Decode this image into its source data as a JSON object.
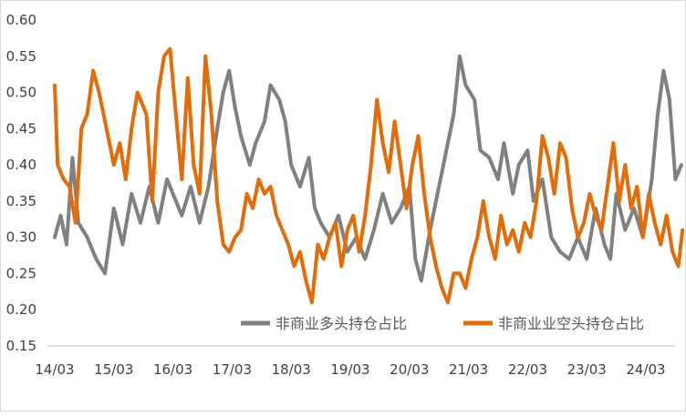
{
  "chart_data": {
    "type": "line",
    "title": "",
    "xlabel": "",
    "ylabel": "",
    "ylim": [
      0.15,
      0.6
    ],
    "y_ticks": [
      "0.15",
      "0.20",
      "0.25",
      "0.30",
      "0.35",
      "0.40",
      "0.45",
      "0.50",
      "0.55",
      "0.60"
    ],
    "x_ticks": [
      "14/03",
      "15/03",
      "16/03",
      "17/03",
      "18/03",
      "19/03",
      "20/03",
      "21/03",
      "22/03",
      "23/03",
      "24/03"
    ],
    "x_range": [
      2014.0,
      2024.65
    ],
    "grid": false,
    "legend": "bottom-right",
    "series": [
      {
        "name": "非商业多头持仓占比",
        "color": "#808080",
        "points": [
          [
            2014.0,
            0.3
          ],
          [
            2014.1,
            0.33
          ],
          [
            2014.2,
            0.29
          ],
          [
            2014.3,
            0.41
          ],
          [
            2014.4,
            0.32
          ],
          [
            2014.55,
            0.3
          ],
          [
            2014.7,
            0.27
          ],
          [
            2014.85,
            0.25
          ],
          [
            2015.0,
            0.34
          ],
          [
            2015.15,
            0.29
          ],
          [
            2015.3,
            0.36
          ],
          [
            2015.45,
            0.32
          ],
          [
            2015.6,
            0.37
          ],
          [
            2015.75,
            0.32
          ],
          [
            2015.9,
            0.38
          ],
          [
            2016.0,
            0.36
          ],
          [
            2016.15,
            0.33
          ],
          [
            2016.3,
            0.37
          ],
          [
            2016.45,
            0.32
          ],
          [
            2016.6,
            0.37
          ],
          [
            2016.75,
            0.45
          ],
          [
            2016.85,
            0.5
          ],
          [
            2016.95,
            0.53
          ],
          [
            2017.05,
            0.48
          ],
          [
            2017.15,
            0.44
          ],
          [
            2017.3,
            0.4
          ],
          [
            2017.4,
            0.43
          ],
          [
            2017.55,
            0.46
          ],
          [
            2017.65,
            0.51
          ],
          [
            2017.8,
            0.49
          ],
          [
            2017.9,
            0.46
          ],
          [
            2018.0,
            0.4
          ],
          [
            2018.15,
            0.37
          ],
          [
            2018.3,
            0.41
          ],
          [
            2018.4,
            0.34
          ],
          [
            2018.5,
            0.32
          ],
          [
            2018.65,
            0.3
          ],
          [
            2018.8,
            0.33
          ],
          [
            2018.95,
            0.28
          ],
          [
            2019.1,
            0.3
          ],
          [
            2019.25,
            0.27
          ],
          [
            2019.4,
            0.31
          ],
          [
            2019.55,
            0.36
          ],
          [
            2019.7,
            0.32
          ],
          [
            2019.85,
            0.34
          ],
          [
            2020.0,
            0.37
          ],
          [
            2020.1,
            0.27
          ],
          [
            2020.2,
            0.24
          ],
          [
            2020.35,
            0.31
          ],
          [
            2020.5,
            0.37
          ],
          [
            2020.6,
            0.41
          ],
          [
            2020.75,
            0.47
          ],
          [
            2020.85,
            0.55
          ],
          [
            2020.95,
            0.51
          ],
          [
            2021.1,
            0.49
          ],
          [
            2021.2,
            0.42
          ],
          [
            2021.35,
            0.41
          ],
          [
            2021.5,
            0.38
          ],
          [
            2021.6,
            0.43
          ],
          [
            2021.75,
            0.36
          ],
          [
            2021.85,
            0.4
          ],
          [
            2022.0,
            0.42
          ],
          [
            2022.1,
            0.35
          ],
          [
            2022.25,
            0.38
          ],
          [
            2022.4,
            0.3
          ],
          [
            2022.55,
            0.28
          ],
          [
            2022.7,
            0.27
          ],
          [
            2022.85,
            0.3
          ],
          [
            2023.0,
            0.27
          ],
          [
            2023.15,
            0.34
          ],
          [
            2023.3,
            0.29
          ],
          [
            2023.4,
            0.27
          ],
          [
            2023.5,
            0.36
          ],
          [
            2023.65,
            0.31
          ],
          [
            2023.8,
            0.34
          ],
          [
            2023.95,
            0.3
          ],
          [
            2024.1,
            0.38
          ],
          [
            2024.2,
            0.47
          ],
          [
            2024.3,
            0.53
          ],
          [
            2024.4,
            0.49
          ],
          [
            2024.5,
            0.38
          ],
          [
            2024.6,
            0.4
          ]
        ]
      },
      {
        "name": "非商业业空头持仓占比",
        "color": "#e36c09",
        "points": [
          [
            2014.0,
            0.51
          ],
          [
            2014.05,
            0.4
          ],
          [
            2014.15,
            0.38
          ],
          [
            2014.25,
            0.37
          ],
          [
            2014.35,
            0.32
          ],
          [
            2014.45,
            0.45
          ],
          [
            2014.55,
            0.47
          ],
          [
            2014.65,
            0.53
          ],
          [
            2014.75,
            0.5
          ],
          [
            2014.85,
            0.46
          ],
          [
            2015.0,
            0.4
          ],
          [
            2015.1,
            0.43
          ],
          [
            2015.2,
            0.38
          ],
          [
            2015.3,
            0.45
          ],
          [
            2015.4,
            0.5
          ],
          [
            2015.55,
            0.47
          ],
          [
            2015.65,
            0.35
          ],
          [
            2015.75,
            0.5
          ],
          [
            2015.85,
            0.55
          ],
          [
            2015.95,
            0.56
          ],
          [
            2016.05,
            0.47
          ],
          [
            2016.15,
            0.38
          ],
          [
            2016.25,
            0.52
          ],
          [
            2016.35,
            0.4
          ],
          [
            2016.45,
            0.36
          ],
          [
            2016.55,
            0.55
          ],
          [
            2016.65,
            0.47
          ],
          [
            2016.75,
            0.35
          ],
          [
            2016.85,
            0.29
          ],
          [
            2016.95,
            0.28
          ],
          [
            2017.05,
            0.3
          ],
          [
            2017.15,
            0.31
          ],
          [
            2017.25,
            0.36
          ],
          [
            2017.35,
            0.34
          ],
          [
            2017.45,
            0.38
          ],
          [
            2017.55,
            0.36
          ],
          [
            2017.65,
            0.37
          ],
          [
            2017.75,
            0.33
          ],
          [
            2017.85,
            0.31
          ],
          [
            2017.95,
            0.29
          ],
          [
            2018.05,
            0.26
          ],
          [
            2018.15,
            0.28
          ],
          [
            2018.25,
            0.24
          ],
          [
            2018.35,
            0.21
          ],
          [
            2018.45,
            0.29
          ],
          [
            2018.55,
            0.27
          ],
          [
            2018.65,
            0.3
          ],
          [
            2018.75,
            0.32
          ],
          [
            2018.85,
            0.26
          ],
          [
            2018.95,
            0.31
          ],
          [
            2019.05,
            0.33
          ],
          [
            2019.15,
            0.28
          ],
          [
            2019.25,
            0.33
          ],
          [
            2019.35,
            0.4
          ],
          [
            2019.45,
            0.49
          ],
          [
            2019.55,
            0.43
          ],
          [
            2019.65,
            0.39
          ],
          [
            2019.75,
            0.46
          ],
          [
            2019.85,
            0.4
          ],
          [
            2019.95,
            0.34
          ],
          [
            2020.05,
            0.4
          ],
          [
            2020.15,
            0.44
          ],
          [
            2020.25,
            0.36
          ],
          [
            2020.35,
            0.3
          ],
          [
            2020.45,
            0.26
          ],
          [
            2020.55,
            0.23
          ],
          [
            2020.65,
            0.21
          ],
          [
            2020.75,
            0.25
          ],
          [
            2020.85,
            0.25
          ],
          [
            2020.95,
            0.23
          ],
          [
            2021.05,
            0.27
          ],
          [
            2021.15,
            0.3
          ],
          [
            2021.25,
            0.35
          ],
          [
            2021.35,
            0.3
          ],
          [
            2021.45,
            0.27
          ],
          [
            2021.55,
            0.33
          ],
          [
            2021.65,
            0.29
          ],
          [
            2021.75,
            0.31
          ],
          [
            2021.85,
            0.28
          ],
          [
            2021.95,
            0.32
          ],
          [
            2022.05,
            0.3
          ],
          [
            2022.15,
            0.35
          ],
          [
            2022.25,
            0.44
          ],
          [
            2022.35,
            0.41
          ],
          [
            2022.45,
            0.36
          ],
          [
            2022.55,
            0.43
          ],
          [
            2022.65,
            0.41
          ],
          [
            2022.75,
            0.34
          ],
          [
            2022.85,
            0.3
          ],
          [
            2022.95,
            0.32
          ],
          [
            2023.05,
            0.36
          ],
          [
            2023.15,
            0.33
          ],
          [
            2023.25,
            0.31
          ],
          [
            2023.35,
            0.37
          ],
          [
            2023.45,
            0.43
          ],
          [
            2023.55,
            0.35
          ],
          [
            2023.65,
            0.4
          ],
          [
            2023.75,
            0.34
          ],
          [
            2023.85,
            0.37
          ],
          [
            2023.95,
            0.3
          ],
          [
            2024.05,
            0.36
          ],
          [
            2024.15,
            0.32
          ],
          [
            2024.25,
            0.29
          ],
          [
            2024.35,
            0.33
          ],
          [
            2024.45,
            0.28
          ],
          [
            2024.55,
            0.26
          ],
          [
            2024.62,
            0.31
          ]
        ]
      }
    ]
  }
}
